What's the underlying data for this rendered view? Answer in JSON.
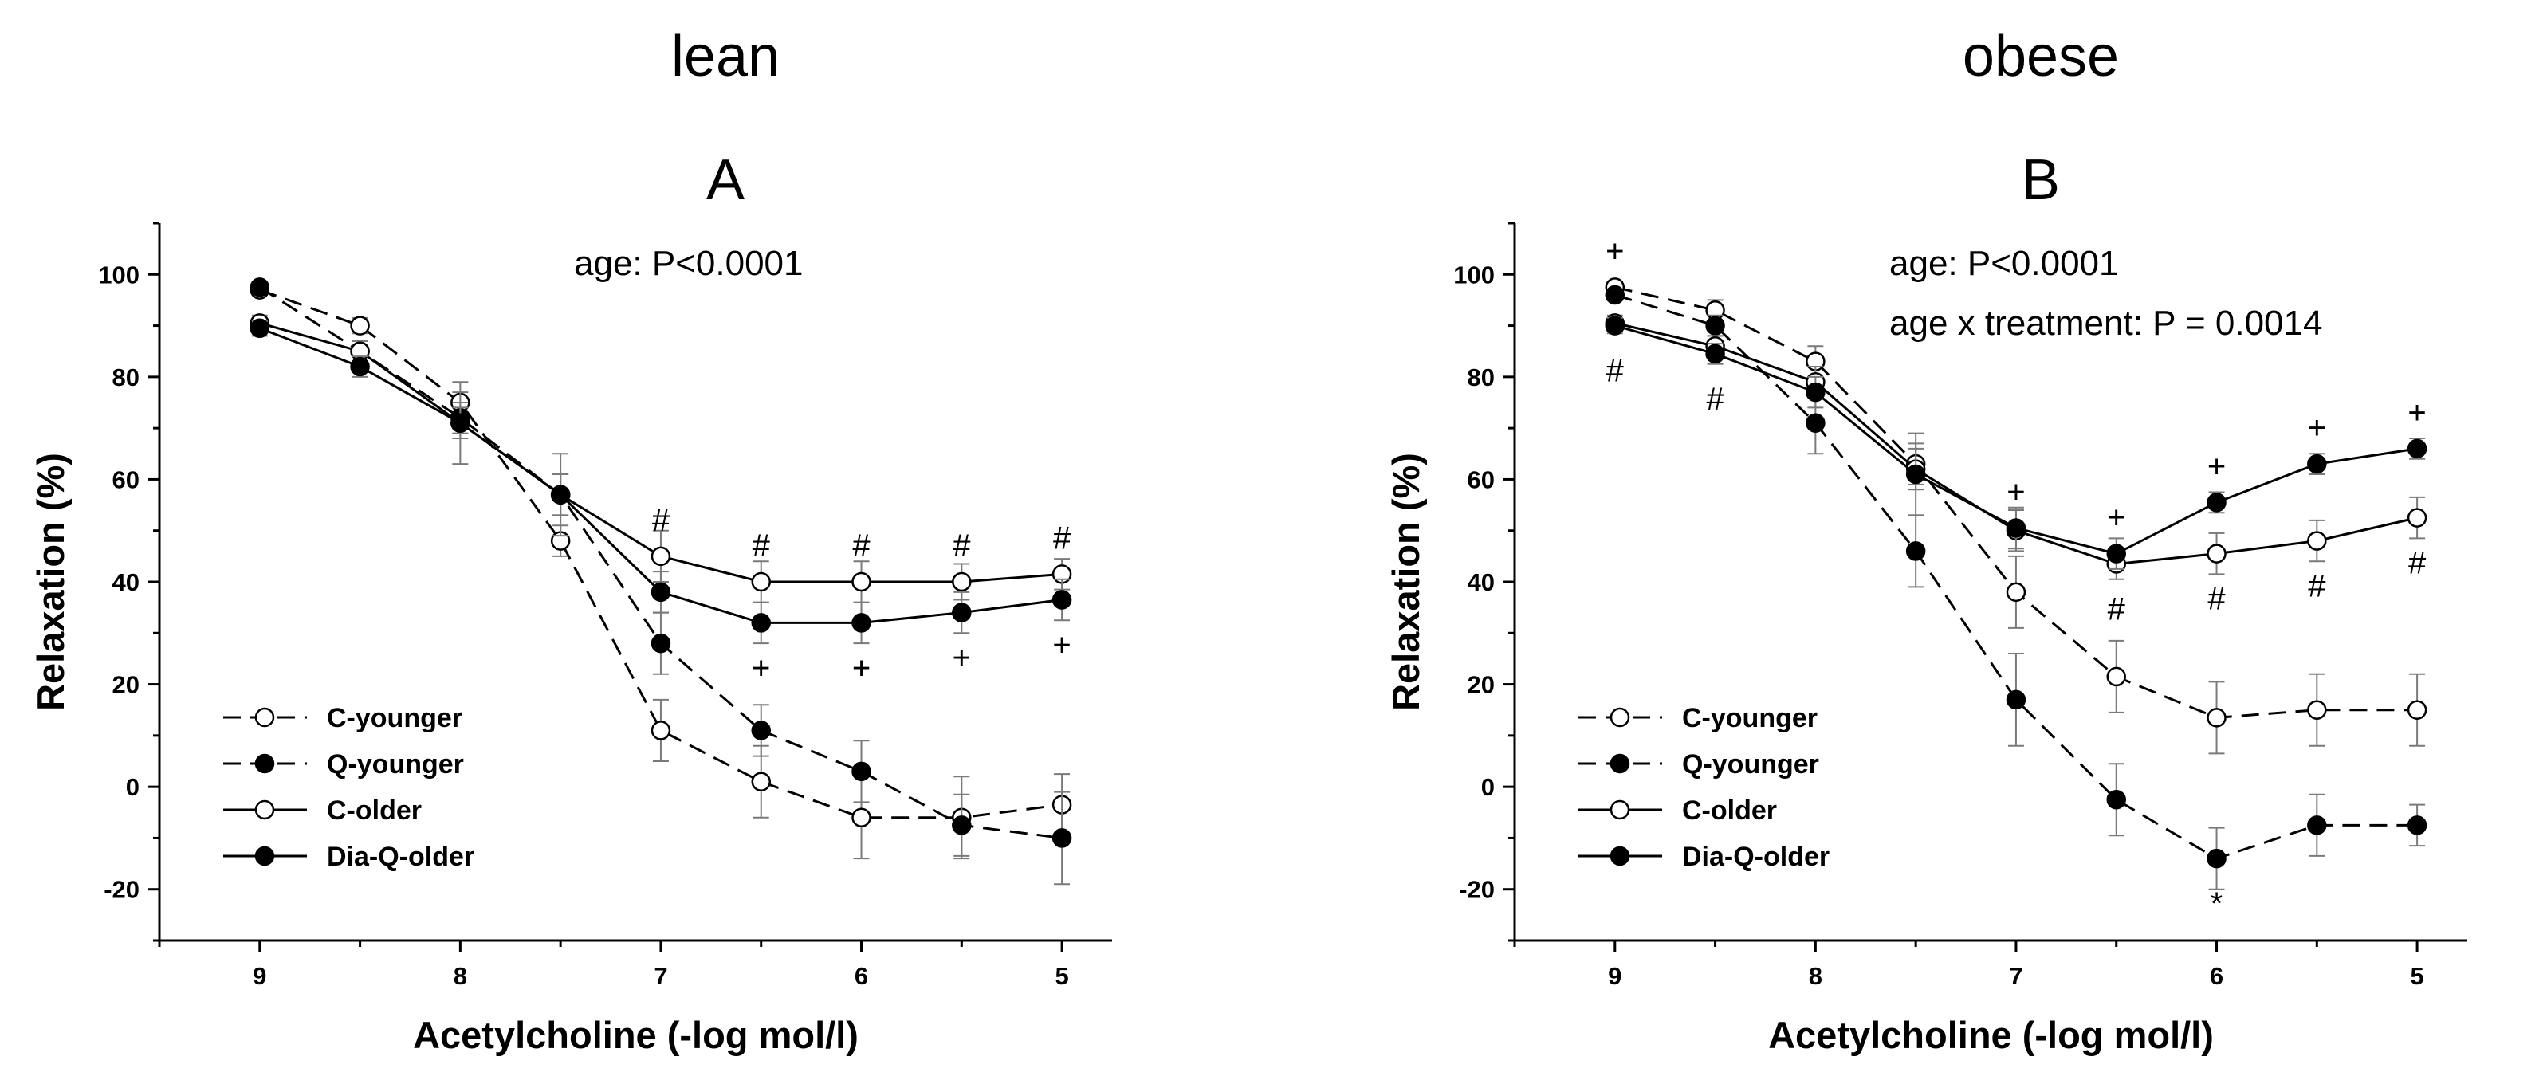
{
  "chart_data": [
    {
      "type": "line",
      "group_title": "lean",
      "title": "A",
      "stats": [
        "age:  P<0.0001"
      ],
      "xlabel": "Acetylcholine (-log mol/l)",
      "ylabel": "Relaxation (%)",
      "x_ticks": [
        "9",
        "8",
        "7",
        "6",
        "5"
      ],
      "y_ticks": [
        "100",
        "80",
        "60",
        "40",
        "20",
        "0",
        "-20"
      ],
      "xlim": [
        9.5,
        4.75
      ],
      "ylim": [
        -30,
        110
      ],
      "x": [
        9,
        8.5,
        8,
        7.5,
        7,
        6.5,
        6,
        5.5,
        5
      ],
      "series": [
        {
          "name": "C-younger",
          "line": "dashed",
          "marker": "open",
          "values": [
            97,
            90,
            75,
            48,
            11,
            1,
            -6,
            -6,
            -3.5
          ],
          "errors": [
            1,
            1.5,
            2,
            3,
            6,
            7,
            8,
            8,
            6
          ]
        },
        {
          "name": "Q-younger",
          "line": "dashed",
          "marker": "filled",
          "values": [
            97.5,
            85,
            72,
            57,
            28,
            11,
            3,
            -7.5,
            -10
          ],
          "errors": [
            1,
            2,
            3,
            4,
            6,
            5,
            6,
            6,
            9
          ]
        },
        {
          "name": "C-older",
          "line": "solid",
          "marker": "open",
          "values": [
            90.5,
            85,
            71,
            57,
            45,
            40,
            40,
            40,
            41.5
          ],
          "errors": [
            1.5,
            2,
            3,
            4,
            5,
            4,
            4,
            3.5,
            3
          ]
        },
        {
          "name": "Dia-Q-older",
          "line": "solid",
          "marker": "filled",
          "values": [
            89.5,
            82,
            71,
            57,
            38,
            32,
            32,
            34,
            36.5
          ],
          "errors": [
            1.5,
            2,
            8,
            8,
            4,
            4,
            4,
            4,
            4
          ]
        }
      ],
      "annotations": [
        {
          "text": "#",
          "x": 7,
          "y": 45,
          "pos": "above"
        },
        {
          "text": "#",
          "x": 6.5,
          "y": 40,
          "pos": "above"
        },
        {
          "text": "#",
          "x": 6,
          "y": 40,
          "pos": "above"
        },
        {
          "text": "#",
          "x": 5.5,
          "y": 40,
          "pos": "above"
        },
        {
          "text": "#",
          "x": 5,
          "y": 41.5,
          "pos": "above"
        },
        {
          "text": "+",
          "x": 6.5,
          "y": 32,
          "pos": "below"
        },
        {
          "text": "+",
          "x": 6,
          "y": 32,
          "pos": "below"
        },
        {
          "text": "+",
          "x": 5.5,
          "y": 34,
          "pos": "below"
        },
        {
          "text": "+",
          "x": 5,
          "y": 36.5,
          "pos": "below"
        }
      ],
      "legend": "bottom-left"
    },
    {
      "type": "line",
      "group_title": "obese",
      "title": "B",
      "stats": [
        "age:  P<0.0001",
        "age x treatment: P = 0.0014"
      ],
      "xlabel": "Acetylcholine (-log mol/l)",
      "ylabel": "Relaxation (%)",
      "x_ticks": [
        "9",
        "8",
        "7",
        "6",
        "5"
      ],
      "y_ticks": [
        "100",
        "80",
        "60",
        "40",
        "20",
        "0",
        "-20"
      ],
      "xlim": [
        9.5,
        4.75
      ],
      "ylim": [
        -30,
        110
      ],
      "x": [
        9,
        8.5,
        8,
        7.5,
        7,
        6.5,
        6,
        5.5,
        5
      ],
      "series": [
        {
          "name": "C-younger",
          "line": "dashed",
          "marker": "open",
          "values": [
            97.5,
            93,
            83,
            63,
            38,
            21.5,
            13.5,
            15,
            15
          ],
          "errors": [
            1,
            2,
            3,
            4,
            7,
            7,
            7,
            7,
            7
          ]
        },
        {
          "name": "Q-younger",
          "line": "dashed",
          "marker": "filled",
          "values": [
            96,
            90,
            71,
            46,
            17,
            -2.5,
            -14,
            -7.5,
            -7.5
          ],
          "errors": [
            1,
            2,
            6,
            7,
            9,
            7,
            6,
            6,
            4
          ]
        },
        {
          "name": "C-older",
          "line": "solid",
          "marker": "open",
          "values": [
            90.5,
            86,
            79,
            62,
            50,
            43.5,
            45.5,
            48,
            52.5
          ],
          "errors": [
            1.5,
            2,
            3,
            4,
            4,
            3,
            4,
            4,
            4
          ]
        },
        {
          "name": "Dia-Q-older",
          "line": "solid",
          "marker": "filled",
          "values": [
            90,
            84.5,
            77,
            61,
            50.5,
            45.5,
            55.5,
            63,
            66
          ],
          "errors": [
            1.5,
            2,
            3,
            8,
            4,
            3,
            2,
            2,
            2
          ]
        }
      ],
      "annotations": [
        {
          "text": "+",
          "x": 9,
          "y": 97.5,
          "pos": "above"
        },
        {
          "text": "#",
          "x": 9,
          "y": 90,
          "pos": "below"
        },
        {
          "text": "#",
          "x": 8.5,
          "y": 84.5,
          "pos": "below"
        },
        {
          "text": "+",
          "x": 7,
          "y": 50.5,
          "pos": "above"
        },
        {
          "text": "+",
          "x": 6.5,
          "y": 45.5,
          "pos": "above"
        },
        {
          "text": "#",
          "x": 6.5,
          "y": 43.5,
          "pos": "below"
        },
        {
          "text": "+",
          "x": 6,
          "y": 55.5,
          "pos": "above"
        },
        {
          "text": "#",
          "x": 6,
          "y": 45.5,
          "pos": "below"
        },
        {
          "text": "+",
          "x": 5.5,
          "y": 63,
          "pos": "above"
        },
        {
          "text": "#",
          "x": 5.5,
          "y": 48,
          "pos": "below"
        },
        {
          "text": "+",
          "x": 5,
          "y": 66,
          "pos": "above"
        },
        {
          "text": "#",
          "x": 5,
          "y": 52.5,
          "pos": "below"
        },
        {
          "text": "*",
          "x": 6,
          "y": -14,
          "pos": "below"
        }
      ],
      "legend": "bottom-left"
    }
  ]
}
